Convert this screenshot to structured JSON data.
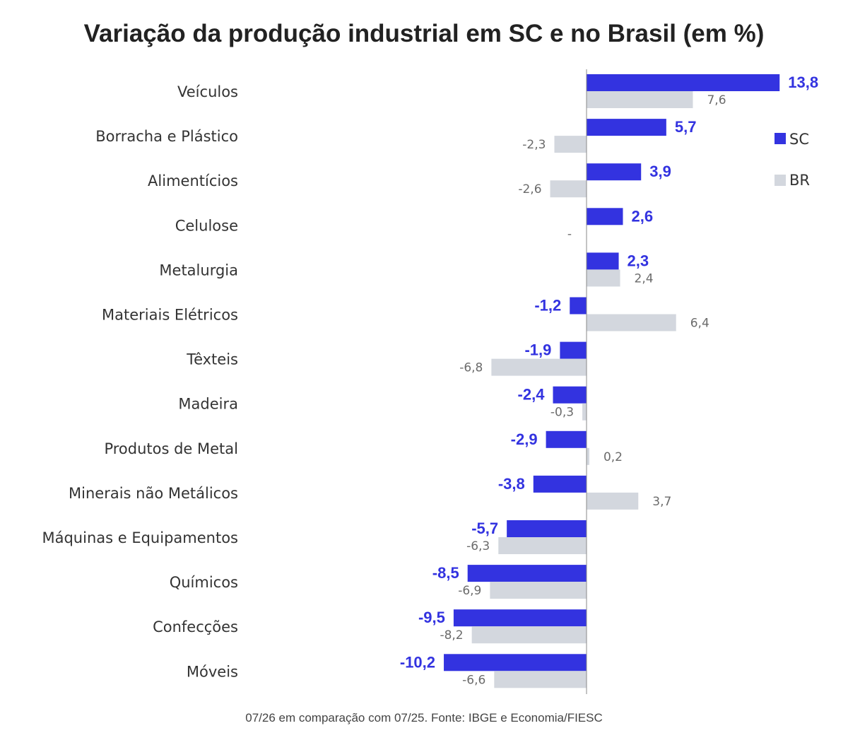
{
  "chart_data": {
    "type": "bar",
    "orientation": "horizontal",
    "title": "Variação da produção industrial em SC e no Brasil (em %)",
    "footnote": "07/26 em comparação com 07/25. Fonte: IBGE e Economia/FIESC",
    "categories": [
      "Veículos",
      "Borracha e Plástico",
      "Alimentícios",
      "Celulose",
      "Metalurgia",
      "Materiais Elétricos",
      "Têxteis",
      "Madeira",
      "Produtos de Metal",
      "Minerais não Metálicos",
      "Máquinas e Equipamentos",
      "Químicos",
      "Confecções",
      "Móveis"
    ],
    "series": [
      {
        "name": "SC",
        "color": "#3333e0",
        "values": [
          13.8,
          5.7,
          3.9,
          2.6,
          2.3,
          -1.2,
          -1.9,
          -2.4,
          -2.9,
          -3.8,
          -5.7,
          -8.5,
          -9.5,
          -10.2
        ],
        "labels": [
          "13,8",
          "5,7",
          "3,9",
          "2,6",
          "2,3",
          "-1,2",
          "-1,9",
          "-2,4",
          "-2,9",
          "-3,8",
          "-5,7",
          "-8,5",
          "-9,5",
          "-10,2"
        ]
      },
      {
        "name": "BR",
        "color": "#d3d7de",
        "values": [
          7.6,
          -2.3,
          -2.6,
          null,
          2.4,
          6.4,
          -6.8,
          -0.3,
          0.2,
          3.7,
          -6.3,
          -6.9,
          -8.2,
          -6.6
        ],
        "labels": [
          "7,6",
          "-2,3",
          "-2,6",
          "-",
          "2,4",
          "6,4",
          "-6,8",
          "-0,3",
          "0,2",
          "3,7",
          "-6,3",
          "-6,9",
          "-8,2",
          "-6,6"
        ]
      }
    ],
    "legend_position": "right",
    "grid": false,
    "xlim": [
      -12,
      15
    ]
  }
}
